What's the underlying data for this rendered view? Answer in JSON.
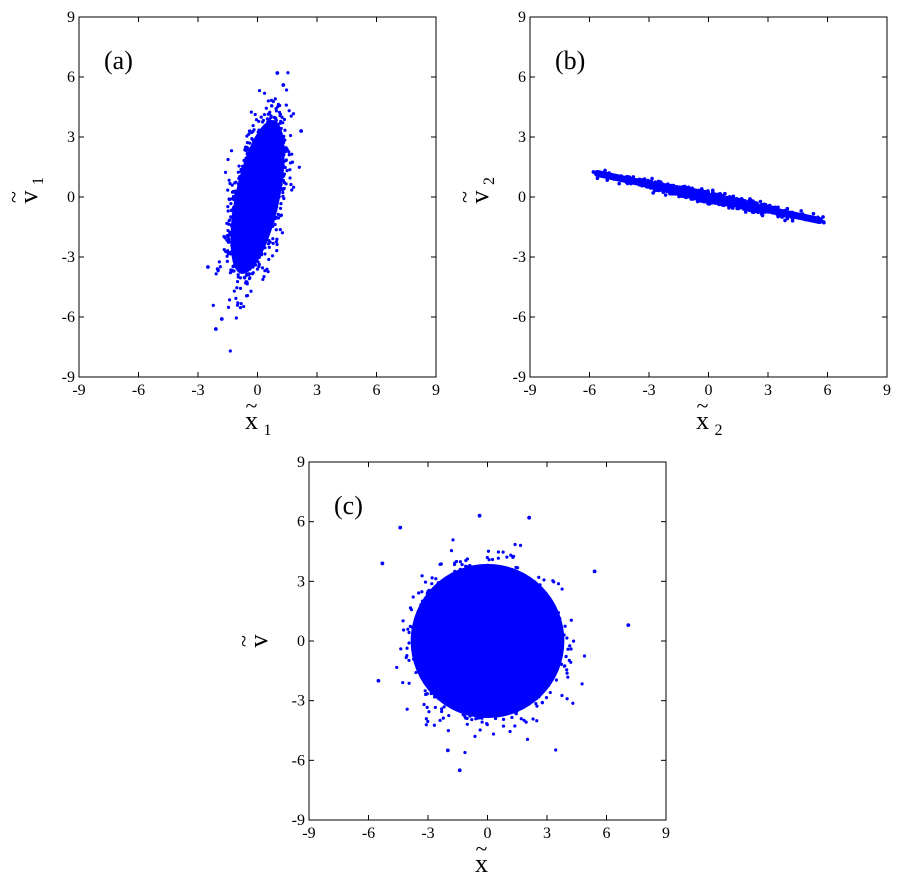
{
  "chart_data": [
    {
      "type": "scatter",
      "panel_label": "(a)",
      "xlabel": "x",
      "xlabel_sub": "1",
      "xlabel_accent": "~",
      "ylabel": "v",
      "ylabel_sub": "1",
      "ylabel_accent": "~",
      "xlim": [
        -9,
        9
      ],
      "ylim": [
        -9,
        9
      ],
      "xticks": [
        "-9",
        "-6",
        "-3",
        "0",
        "3",
        "6",
        "9"
      ],
      "yticks": [
        "-9",
        "-6",
        "-3",
        "0",
        "3",
        "6",
        "9"
      ],
      "grid": false,
      "color": "#0000ff",
      "distribution": {
        "mean": [
          0,
          0
        ],
        "sd_x": 0.62,
        "sd_y": 1.75,
        "correlation": 0.55,
        "n": 2600
      },
      "outliers": [
        [
          -2.1,
          -6.6
        ],
        [
          1.0,
          6.2
        ],
        [
          1.3,
          5.6
        ],
        [
          -1.8,
          -6.1
        ],
        [
          2.2,
          3.3
        ],
        [
          -2.5,
          -3.5
        ]
      ]
    },
    {
      "type": "scatter",
      "panel_label": "(b)",
      "xlabel": "x",
      "xlabel_sub": "2",
      "xlabel_accent": "~",
      "ylabel": "v",
      "ylabel_sub": "2",
      "ylabel_accent": "~",
      "xlim": [
        -9,
        9
      ],
      "ylim": [
        -9,
        9
      ],
      "xticks": [
        "-9",
        "-6",
        "-3",
        "0",
        "3",
        "6",
        "9"
      ],
      "yticks": [
        "-9",
        "-6",
        "-3",
        "0",
        "3",
        "6",
        "9"
      ],
      "grid": false,
      "color": "#0000ff",
      "distribution": {
        "mean": [
          0,
          0
        ],
        "slope": -0.21,
        "sd_along_x": 1.9,
        "sd_perp": 0.12,
        "n": 1800
      },
      "outliers": [
        [
          -5.8,
          1.25
        ],
        [
          5.8,
          -1.25
        ],
        [
          -5.5,
          1.2
        ],
        [
          5.5,
          -1.15
        ]
      ]
    },
    {
      "type": "scatter",
      "panel_label": "(c)",
      "xlabel": "x",
      "xlabel_sub": "",
      "xlabel_accent": "~",
      "ylabel": "v",
      "ylabel_sub": "",
      "ylabel_accent": "~",
      "xlim": [
        -9,
        9
      ],
      "ylim": [
        -9,
        9
      ],
      "xticks": [
        "-9",
        "-6",
        "-3",
        "0",
        "3",
        "6",
        "9"
      ],
      "yticks": [
        "-9",
        "-6",
        "-3",
        "0",
        "3",
        "6",
        "9"
      ],
      "grid": false,
      "color": "#0000ff",
      "distribution": {
        "mean": [
          0,
          0
        ],
        "sd_x": 1.55,
        "sd_y": 1.55,
        "correlation": 0,
        "n": 3200
      },
      "outliers": [
        [
          7.1,
          0.8
        ],
        [
          -5.5,
          -2.0
        ],
        [
          -5.3,
          3.9
        ],
        [
          -4.4,
          5.7
        ],
        [
          2.1,
          6.2
        ],
        [
          -0.4,
          6.3
        ],
        [
          -1.4,
          -6.5
        ],
        [
          5.4,
          3.5
        ],
        [
          -2.0,
          -5.5
        ]
      ]
    }
  ]
}
